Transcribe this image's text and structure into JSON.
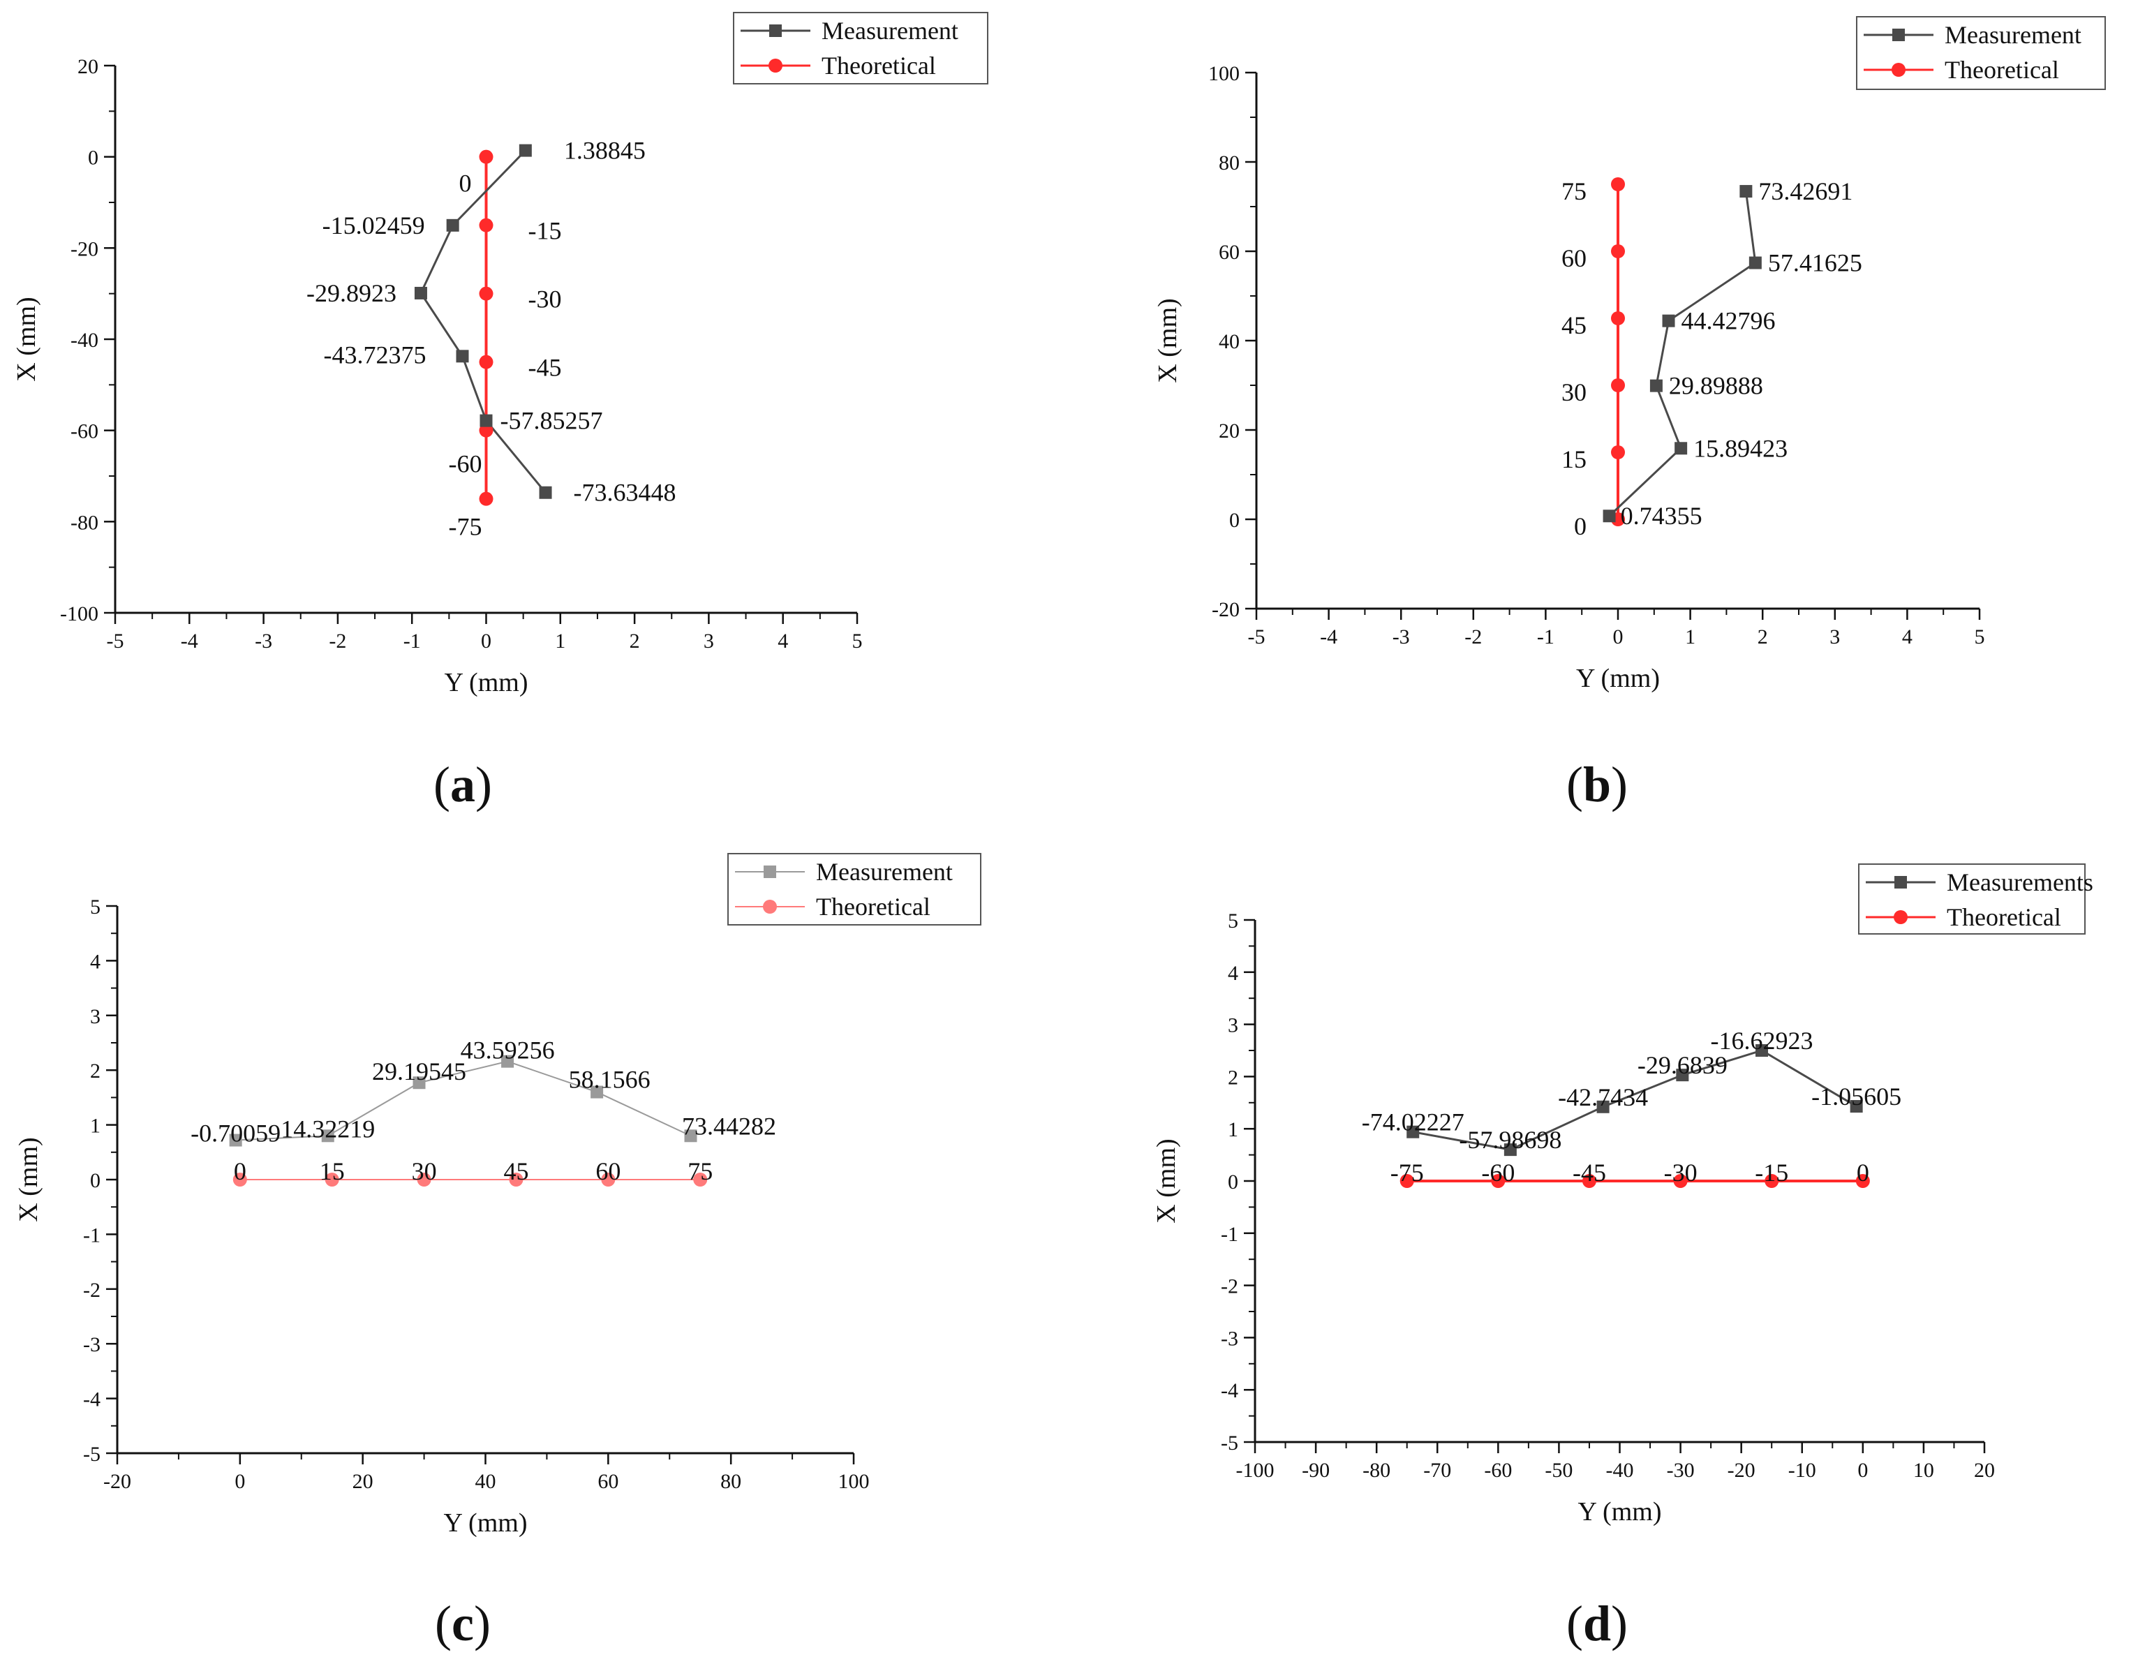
{
  "chart_data": [
    {
      "panel": "(a)",
      "panel_label_parts": [
        "(",
        "a",
        ")"
      ],
      "type": "line",
      "xlabel": "Y (mm)",
      "ylabel": "X (mm)",
      "xlim": [
        -5,
        5
      ],
      "ylim": [
        -100,
        20
      ],
      "xticks": [
        -5,
        -4,
        -3,
        -2,
        -1,
        0,
        1,
        2,
        3,
        4,
        5
      ],
      "yticks": [
        20,
        0,
        -20,
        -40,
        -60,
        -80,
        -100
      ],
      "legend": {
        "position": "top-right"
      },
      "series": [
        {
          "name": "Measurement",
          "marker": "square",
          "color": "#4a4a4a",
          "x": [
            0.53,
            -0.45,
            -0.88,
            -0.32,
            0.0,
            0.8
          ],
          "y": [
            1.38845,
            -15.02459,
            -29.8923,
            -43.72375,
            -57.85257,
            -73.63448
          ],
          "labels": [
            "1.38845",
            "-15.02459",
            "-29.8923",
            "-43.72375",
            "-57.85257",
            "-73.63448"
          ]
        },
        {
          "name": "Theoretical",
          "marker": "circle",
          "color": "#ff2a2a",
          "x": [
            0,
            0,
            0,
            0,
            0,
            0
          ],
          "y": [
            0,
            -15,
            -30,
            -45,
            -60,
            -75
          ],
          "labels": [
            "0",
            "-15",
            "-30",
            "-45",
            "-60",
            "-75"
          ]
        }
      ]
    },
    {
      "panel": "(b)",
      "panel_label_parts": [
        "(",
        "b",
        ")"
      ],
      "type": "line",
      "xlabel": "Y (mm)",
      "ylabel": "X (mm)",
      "xlim": [
        -5,
        5
      ],
      "ylim": [
        -20,
        100
      ],
      "xticks": [
        -5,
        -4,
        -3,
        -2,
        -1,
        0,
        1,
        2,
        3,
        4,
        5
      ],
      "yticks": [
        100,
        80,
        60,
        40,
        20,
        0,
        -20
      ],
      "legend": {
        "position": "top-right"
      },
      "series": [
        {
          "name": "Measurement",
          "marker": "square",
          "color": "#4a4a4a",
          "x": [
            -0.12,
            0.87,
            0.53,
            0.7,
            1.9,
            1.77
          ],
          "y": [
            0.74355,
            15.89423,
            29.89888,
            44.42796,
            57.41625,
            73.42691
          ],
          "labels": [
            "0.74355",
            "15.89423",
            "29.89888",
            "44.42796",
            "57.41625",
            "73.42691"
          ]
        },
        {
          "name": "Theoretical",
          "marker": "circle",
          "color": "#ff2a2a",
          "x": [
            0,
            0,
            0,
            0,
            0,
            0
          ],
          "y": [
            0,
            15,
            30,
            45,
            60,
            75
          ],
          "labels": [
            "0",
            "15",
            "30",
            "45",
            "60",
            "75"
          ]
        }
      ]
    },
    {
      "panel": "(c)",
      "panel_label_parts": [
        "(",
        "c",
        ")"
      ],
      "type": "line",
      "xlabel": "Y (mm)",
      "ylabel": "X (mm)",
      "xlim": [
        -20,
        100
      ],
      "ylim": [
        -5,
        5
      ],
      "xticks": [
        -20,
        0,
        20,
        40,
        60,
        80,
        100
      ],
      "yticks": [
        5,
        4,
        3,
        2,
        1,
        0,
        -1,
        -2,
        -3,
        -4,
        -5
      ],
      "legend": {
        "position": "top-right"
      },
      "series": [
        {
          "name": "Measurement",
          "marker": "square",
          "color": "#9a9a9a",
          "x": [
            -0.70059,
            14.32219,
            29.19545,
            43.59256,
            58.1566,
            73.44282
          ],
          "y": [
            0.72,
            0.8,
            1.77,
            2.16,
            1.6,
            0.8
          ],
          "labels": [
            "-0.70059",
            "14.32219",
            "29.19545",
            "43.59256",
            "58.1566",
            "73.44282"
          ]
        },
        {
          "name": "Theoretical",
          "marker": "circle",
          "color": "#ff7a7a",
          "x": [
            0,
            15,
            30,
            45,
            60,
            75
          ],
          "y": [
            0,
            0,
            0,
            0,
            0,
            0
          ],
          "labels": [
            "0",
            "15",
            "30",
            "45",
            "60",
            "75"
          ]
        }
      ]
    },
    {
      "panel": "(d)",
      "panel_label_parts": [
        "(",
        "d",
        ")"
      ],
      "type": "line",
      "xlabel": "Y (mm)",
      "ylabel": "X (mm)",
      "xlim": [
        -100,
        20
      ],
      "ylim": [
        -5,
        5
      ],
      "xticks": [
        -100,
        -90,
        -80,
        -70,
        -60,
        -50,
        -40,
        -30,
        -20,
        -10,
        0,
        10,
        20
      ],
      "yticks": [
        5,
        4,
        3,
        2,
        1,
        0,
        -1,
        -2,
        -3,
        -4,
        -5
      ],
      "legend": {
        "position": "top-right"
      },
      "series": [
        {
          "name": "Measurements",
          "marker": "square",
          "color": "#4a4a4a",
          "x": [
            -74.02227,
            -57.98698,
            -42.7434,
            -29.6839,
            -16.62923,
            -1.05605
          ],
          "y": [
            0.94,
            0.6,
            1.42,
            2.03,
            2.5,
            1.43
          ],
          "labels": [
            "-74.02227",
            "-57.98698",
            "-42.7434",
            "-29.6839",
            "-16.62923",
            "-1.05605"
          ]
        },
        {
          "name": "Theoretical",
          "marker": "circle",
          "color": "#ff2a2a",
          "x": [
            -75,
            -60,
            -45,
            -30,
            -15,
            0
          ],
          "y": [
            0,
            0,
            0,
            0,
            0,
            0
          ],
          "labels": [
            "-75",
            "-60",
            "-45",
            "-30",
            "-15",
            "0"
          ]
        }
      ]
    }
  ]
}
